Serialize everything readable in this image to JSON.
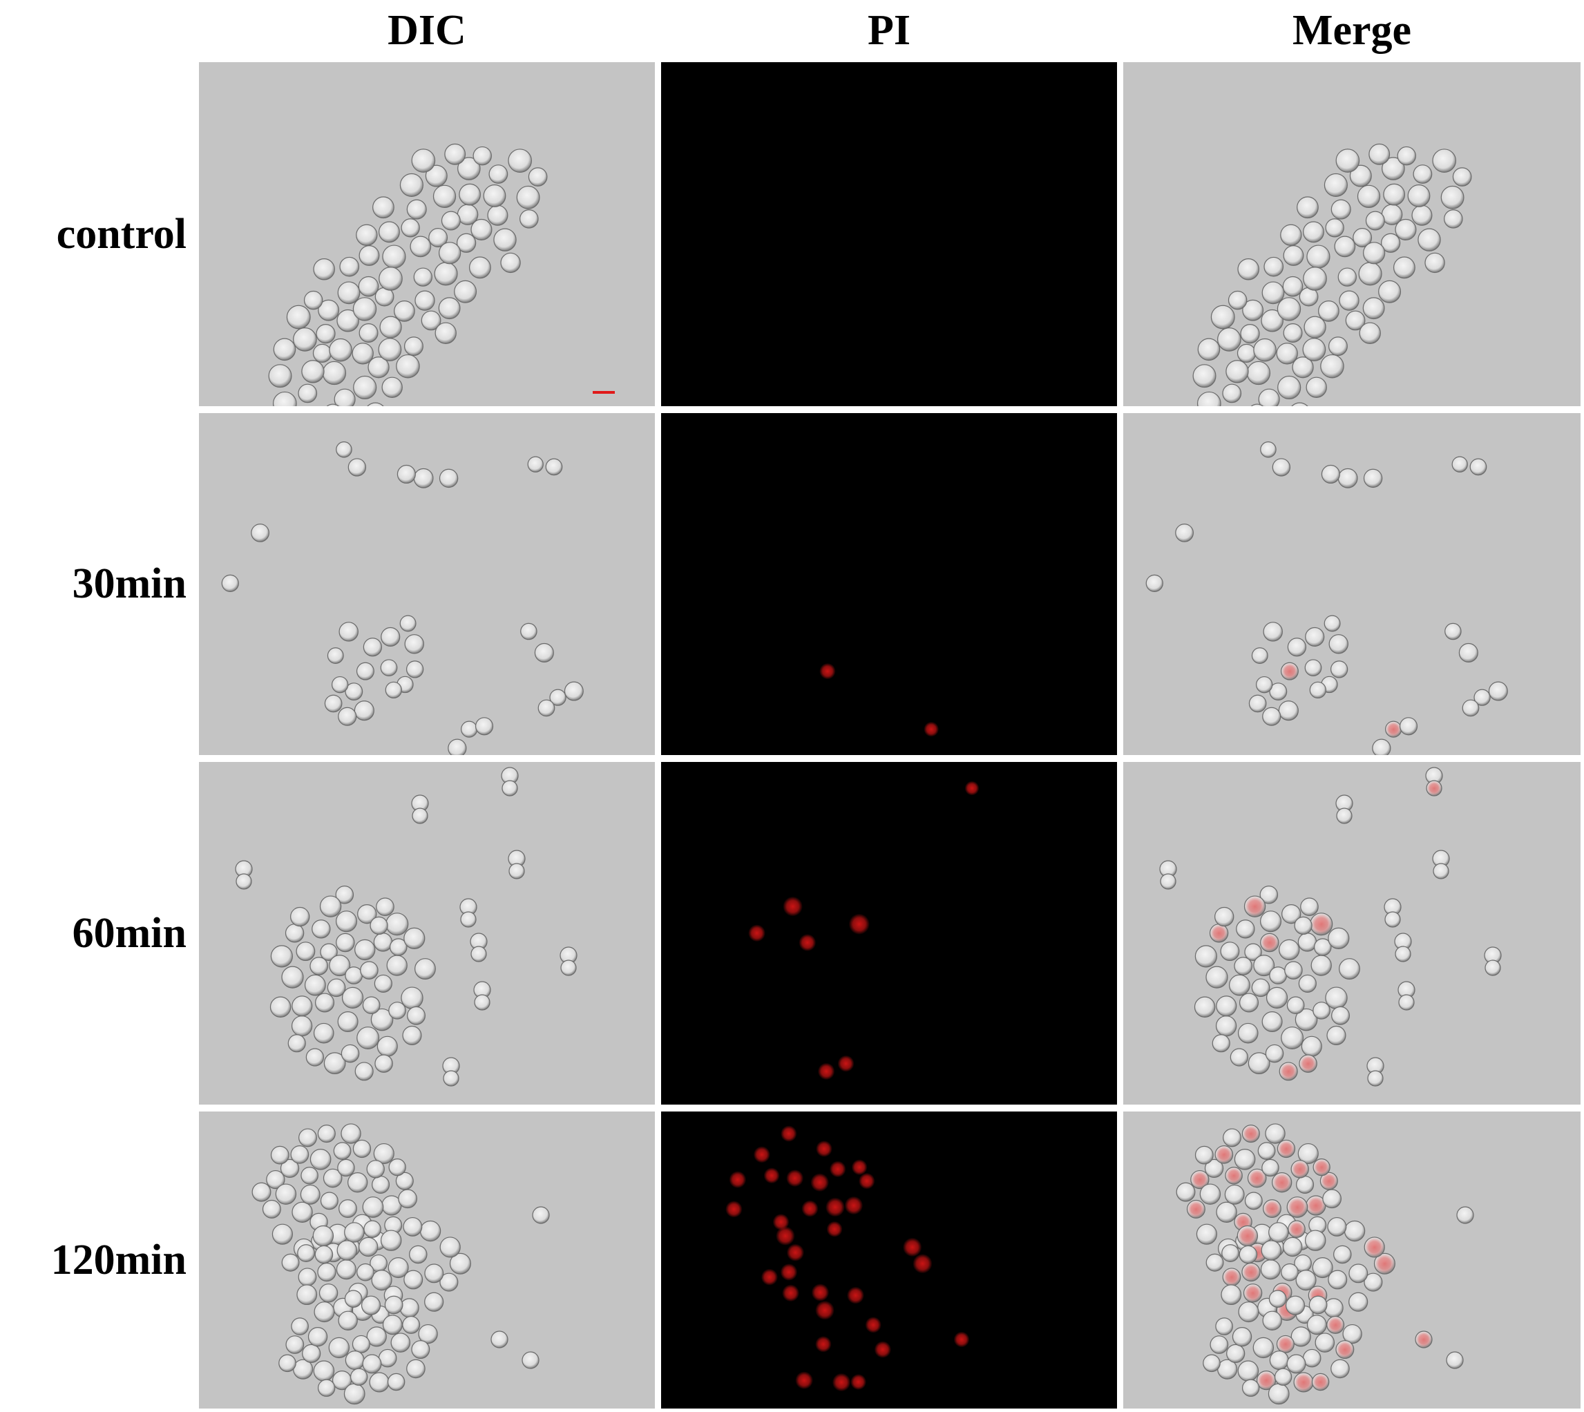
{
  "columns": [
    "DIC",
    "PI",
    "Merge"
  ],
  "rows": [
    "control",
    "30min",
    "60min",
    "120min"
  ],
  "colors": {
    "dic_background": "#c4c4c4",
    "pi_background": "#000000",
    "pi_signal": "#d41515",
    "scale_bar": "#e01a1a"
  },
  "panels": {
    "scale_bar_panel": "control-DIC"
  }
}
